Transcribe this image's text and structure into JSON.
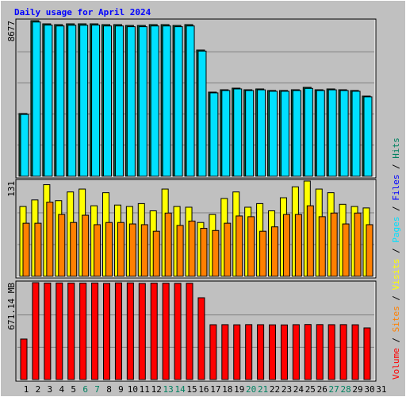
{
  "title": "Daily usage for April 2024",
  "legend_separator": " / ",
  "legend": [
    {
      "name": "Volume",
      "color": "#ff0000"
    },
    {
      "name": "Sites",
      "color": "#ff8000"
    },
    {
      "name": "Visits",
      "color": "#ffff00"
    },
    {
      "name": "Pages",
      "color": "#00e0ff"
    },
    {
      "name": "Files",
      "color": "#0000ff"
    },
    {
      "name": "Hits",
      "color": "#008060"
    }
  ],
  "chart_data": [
    {
      "type": "bar",
      "ylim": [
        0,
        8677
      ],
      "yticks": [
        8677
      ],
      "grid_divisions": 5,
      "series": [
        {
          "color": "#006040",
          "values": [
            3497,
            8677,
            8500,
            8456,
            8500,
            8500,
            8500,
            8456,
            8456,
            8411,
            8411,
            8456,
            8456,
            8411,
            8456,
            7039,
            4693,
            4825,
            4914,
            4825,
            4870,
            4781,
            4781,
            4825,
            4958,
            4825,
            4870,
            4825,
            4781,
            4471,
            null
          ]
        },
        {
          "color": "#00e0ff",
          "values": [
            3450,
            8600,
            8430,
            8380,
            8420,
            8420,
            8430,
            8380,
            8380,
            8340,
            8340,
            8380,
            8380,
            8340,
            8380,
            6980,
            4650,
            4780,
            4870,
            4780,
            4820,
            4740,
            4740,
            4780,
            4900,
            4780,
            4820,
            4780,
            4740,
            4430,
            null
          ]
        }
      ]
    },
    {
      "type": "bar",
      "ylim": [
        0,
        131
      ],
      "yticks": [
        131
      ],
      "grid_divisions": 3,
      "series": [
        {
          "color": "#ffff00",
          "values": [
            96,
            105,
            126,
            104,
            116,
            120,
            97,
            115,
            98,
            96,
            100,
            90,
            120,
            96,
            95,
            74,
            85,
            107,
            116,
            95,
            100,
            90,
            108,
            123,
            131,
            120,
            115,
            99,
            96,
            94,
            null
          ]
        },
        {
          "color": "#ff8000",
          "values": [
            73,
            73,
            102,
            85,
            74,
            84,
            71,
            74,
            74,
            72,
            71,
            62,
            87,
            70,
            76,
            66,
            63,
            73,
            83,
            82,
            62,
            68,
            85,
            85,
            97,
            82,
            87,
            72,
            87,
            71,
            null
          ]
        }
      ]
    },
    {
      "type": "bar",
      "ylim": [
        0,
        671.14
      ],
      "yticks": [
        {
          "value": 671.14,
          "label": "671.14 MB"
        }
      ],
      "grid_divisions": 3,
      "categories": [
        "1",
        "2",
        "3",
        "4",
        "5",
        "6",
        "7",
        "8",
        "9",
        "10",
        "11",
        "12",
        "13",
        "14",
        "15",
        "16",
        "17",
        "18",
        "19",
        "20",
        "21",
        "22",
        "23",
        "24",
        "25",
        "26",
        "27",
        "28",
        "29",
        "30",
        "31"
      ],
      "category_colors": [
        "#000000",
        "#000000",
        "#000000",
        "#000000",
        "#000000",
        "#008060",
        "#008060",
        "#000000",
        "#000000",
        "#000000",
        "#000000",
        "#000000",
        "#008060",
        "#008060",
        "#000000",
        "#000000",
        "#000000",
        "#000000",
        "#000000",
        "#008060",
        "#008060",
        "#000000",
        "#000000",
        "#000000",
        "#000000",
        "#000000",
        "#008060",
        "#008060",
        "#000000",
        "#000000",
        "#000000"
      ],
      "series": [
        {
          "color": "#ff0000",
          "values": [
            280.6,
            671.14,
            668.5,
            669.0,
            668.2,
            667.8,
            668.9,
            666.0,
            669.5,
            669.3,
            665.7,
            668.0,
            667.2,
            666.4,
            667.0,
            566.6,
            379.6,
            380.1,
            379.2,
            380.4,
            379.8,
            379.0,
            378.5,
            380.0,
            381.2,
            380.6,
            379.9,
            380.3,
            379.4,
            357.6,
            null
          ]
        }
      ]
    }
  ]
}
